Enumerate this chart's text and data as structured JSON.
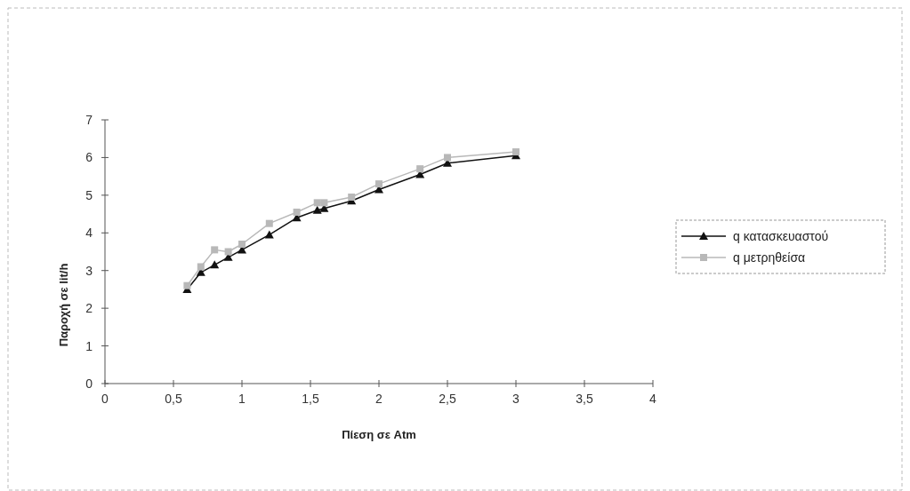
{
  "chart_data": {
    "type": "line",
    "xlabel": "Πίεση σε Atm",
    "ylabel": "Παροχή σε lit/h",
    "x": [
      0.6,
      0.7,
      0.8,
      0.9,
      1.0,
      1.2,
      1.4,
      1.55,
      1.6,
      1.8,
      2.0,
      2.3,
      2.5,
      3.0
    ],
    "series": [
      {
        "name": "q κατασκευαστού",
        "color": "#111111",
        "marker": "triangle",
        "values": [
          2.5,
          2.95,
          3.15,
          3.35,
          3.55,
          3.95,
          4.4,
          4.6,
          4.65,
          4.85,
          5.15,
          5.55,
          5.85,
          6.05
        ]
      },
      {
        "name": "q μετρηθείσα",
        "color": "#b8b8b8",
        "marker": "square",
        "values": [
          2.6,
          3.1,
          3.55,
          3.5,
          3.7,
          4.25,
          4.55,
          4.8,
          4.8,
          4.95,
          5.3,
          5.7,
          6.0,
          6.15
        ]
      }
    ],
    "xlim": [
      0,
      4
    ],
    "xticks": [
      {
        "value": 0,
        "label": "0"
      },
      {
        "value": 0.5,
        "label": "0,5"
      },
      {
        "value": 1,
        "label": "1"
      },
      {
        "value": 1.5,
        "label": "1,5"
      },
      {
        "value": 2,
        "label": "2"
      },
      {
        "value": 2.5,
        "label": "2,5"
      },
      {
        "value": 3,
        "label": "3"
      },
      {
        "value": 3.5,
        "label": "3,5"
      },
      {
        "value": 4,
        "label": "4"
      }
    ],
    "ylim": [
      0,
      7
    ],
    "yticks": [
      0,
      1,
      2,
      3,
      4,
      5,
      6,
      7
    ],
    "legend": "right"
  }
}
